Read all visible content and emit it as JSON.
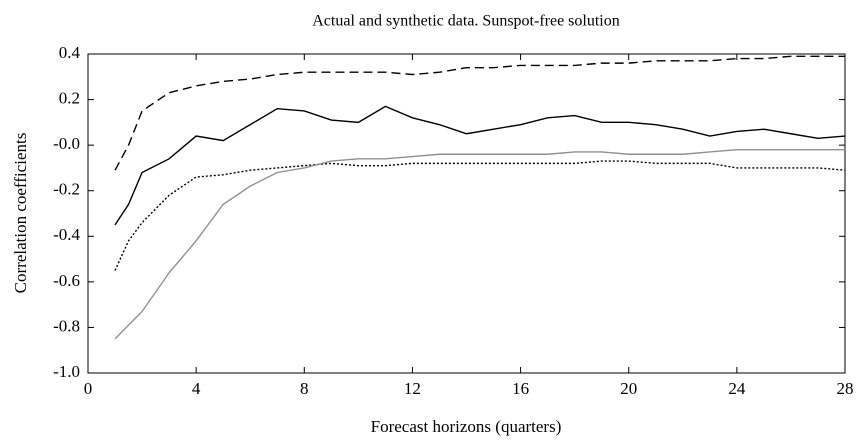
{
  "chart_data": {
    "type": "line",
    "title": "Actual and synthetic data. Sunspot-free solution",
    "xlabel": "Forecast horizons (quarters)",
    "ylabel": "Correlation coefficients",
    "x": [
      1,
      1.5,
      2,
      3,
      4,
      5,
      6,
      7,
      8,
      9,
      10,
      11,
      12,
      13,
      14,
      15,
      16,
      17,
      18,
      19,
      20,
      21,
      22,
      23,
      24,
      25,
      26,
      27,
      28
    ],
    "series": [
      {
        "color": "#000000",
        "dash": "none",
        "values": [
          -0.35,
          -0.26,
          -0.12,
          -0.06,
          0.04,
          0.02,
          0.09,
          0.16,
          0.15,
          0.11,
          0.1,
          0.17,
          0.12,
          0.09,
          0.05,
          0.07,
          0.09,
          0.12,
          0.13,
          0.1,
          0.1,
          0.09,
          0.07,
          0.04,
          0.06,
          0.07,
          0.05,
          0.03,
          0.04
        ]
      },
      {
        "color": "#000000",
        "dash": "9 5",
        "values": [
          -0.11,
          0.0,
          0.15,
          0.23,
          0.26,
          0.28,
          0.29,
          0.31,
          0.32,
          0.32,
          0.32,
          0.32,
          0.31,
          0.32,
          0.34,
          0.34,
          0.35,
          0.35,
          0.35,
          0.36,
          0.36,
          0.37,
          0.37,
          0.37,
          0.38,
          0.38,
          0.39,
          0.39,
          0.39
        ]
      },
      {
        "color": "#000000",
        "dash": "2 2",
        "values": [
          -0.55,
          -0.42,
          -0.34,
          -0.22,
          -0.14,
          -0.13,
          -0.11,
          -0.1,
          -0.09,
          -0.08,
          -0.09,
          -0.09,
          -0.08,
          -0.08,
          -0.08,
          -0.08,
          -0.08,
          -0.08,
          -0.08,
          -0.07,
          -0.07,
          -0.08,
          -0.08,
          -0.08,
          -0.1,
          -0.1,
          -0.1,
          -0.1,
          -0.11
        ]
      },
      {
        "color": "#909090",
        "dash": "none",
        "values": [
          -0.85,
          -0.79,
          -0.73,
          -0.56,
          -0.42,
          -0.26,
          -0.18,
          -0.12,
          -0.1,
          -0.07,
          -0.06,
          -0.06,
          -0.05,
          -0.04,
          -0.04,
          -0.04,
          -0.04,
          -0.04,
          -0.03,
          -0.03,
          -0.04,
          -0.04,
          -0.04,
          -0.03,
          -0.02,
          -0.02,
          -0.02,
          -0.02,
          -0.02
        ]
      }
    ],
    "xlim": [
      0,
      28
    ],
    "xticks": [
      0,
      4,
      8,
      12,
      16,
      20,
      24,
      28
    ],
    "ylim": [
      -1.0,
      0.4
    ],
    "yticks": [
      0.4,
      0.2,
      {
        "value": 0,
        "label": "-0.0"
      },
      -0.2,
      -0.4,
      -0.6,
      -0.8,
      {
        "value": -1,
        "label": "-1.0"
      }
    ]
  }
}
